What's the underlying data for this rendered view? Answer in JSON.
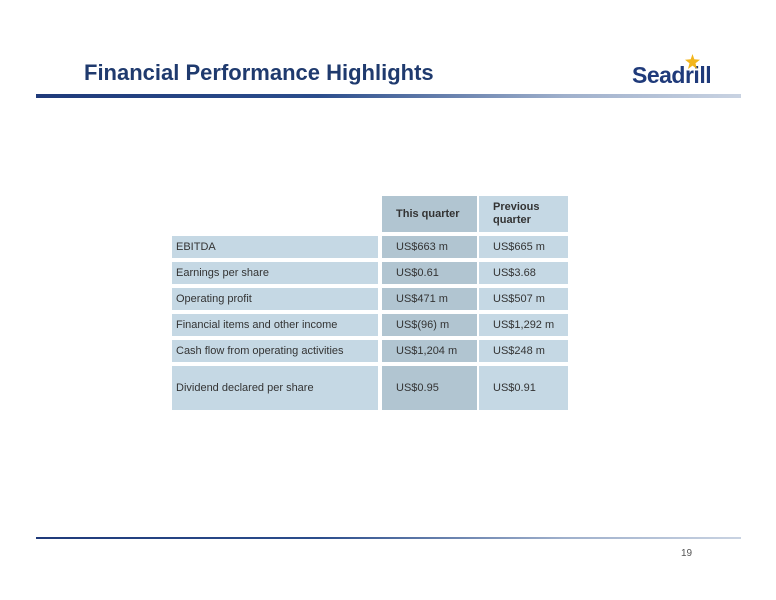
{
  "header": {
    "title": "Financial Performance Highlights",
    "logo_text": "Seadrill"
  },
  "table": {
    "columns": [
      "This quarter",
      "Previous quarter"
    ],
    "rows": [
      {
        "label": "EBITDA",
        "this_quarter": "US$663 m",
        "previous_quarter": "US$665 m"
      },
      {
        "label": "Earnings per share",
        "this_quarter": "US$0.61",
        "previous_quarter": "US$3.68"
      },
      {
        "label": "Operating profit",
        "this_quarter": "US$471 m",
        "previous_quarter": "US$507 m"
      },
      {
        "label": "Financial items and other income",
        "this_quarter": "US$(96) m",
        "previous_quarter": "US$1,292 m"
      },
      {
        "label": "Cash flow from operating activities",
        "this_quarter": "US$1,204 m",
        "previous_quarter": "US$248 m"
      },
      {
        "label": "Dividend declared per share",
        "this_quarter": "US$0.95",
        "previous_quarter": "US$0.91"
      }
    ]
  },
  "footer": {
    "page_number": "19"
  },
  "colors": {
    "title": "#1f3a6e",
    "logo_star": "#f2b51c",
    "label_cell": "#c5d8e4",
    "this_quarter_cell": "#b1c5d1"
  }
}
